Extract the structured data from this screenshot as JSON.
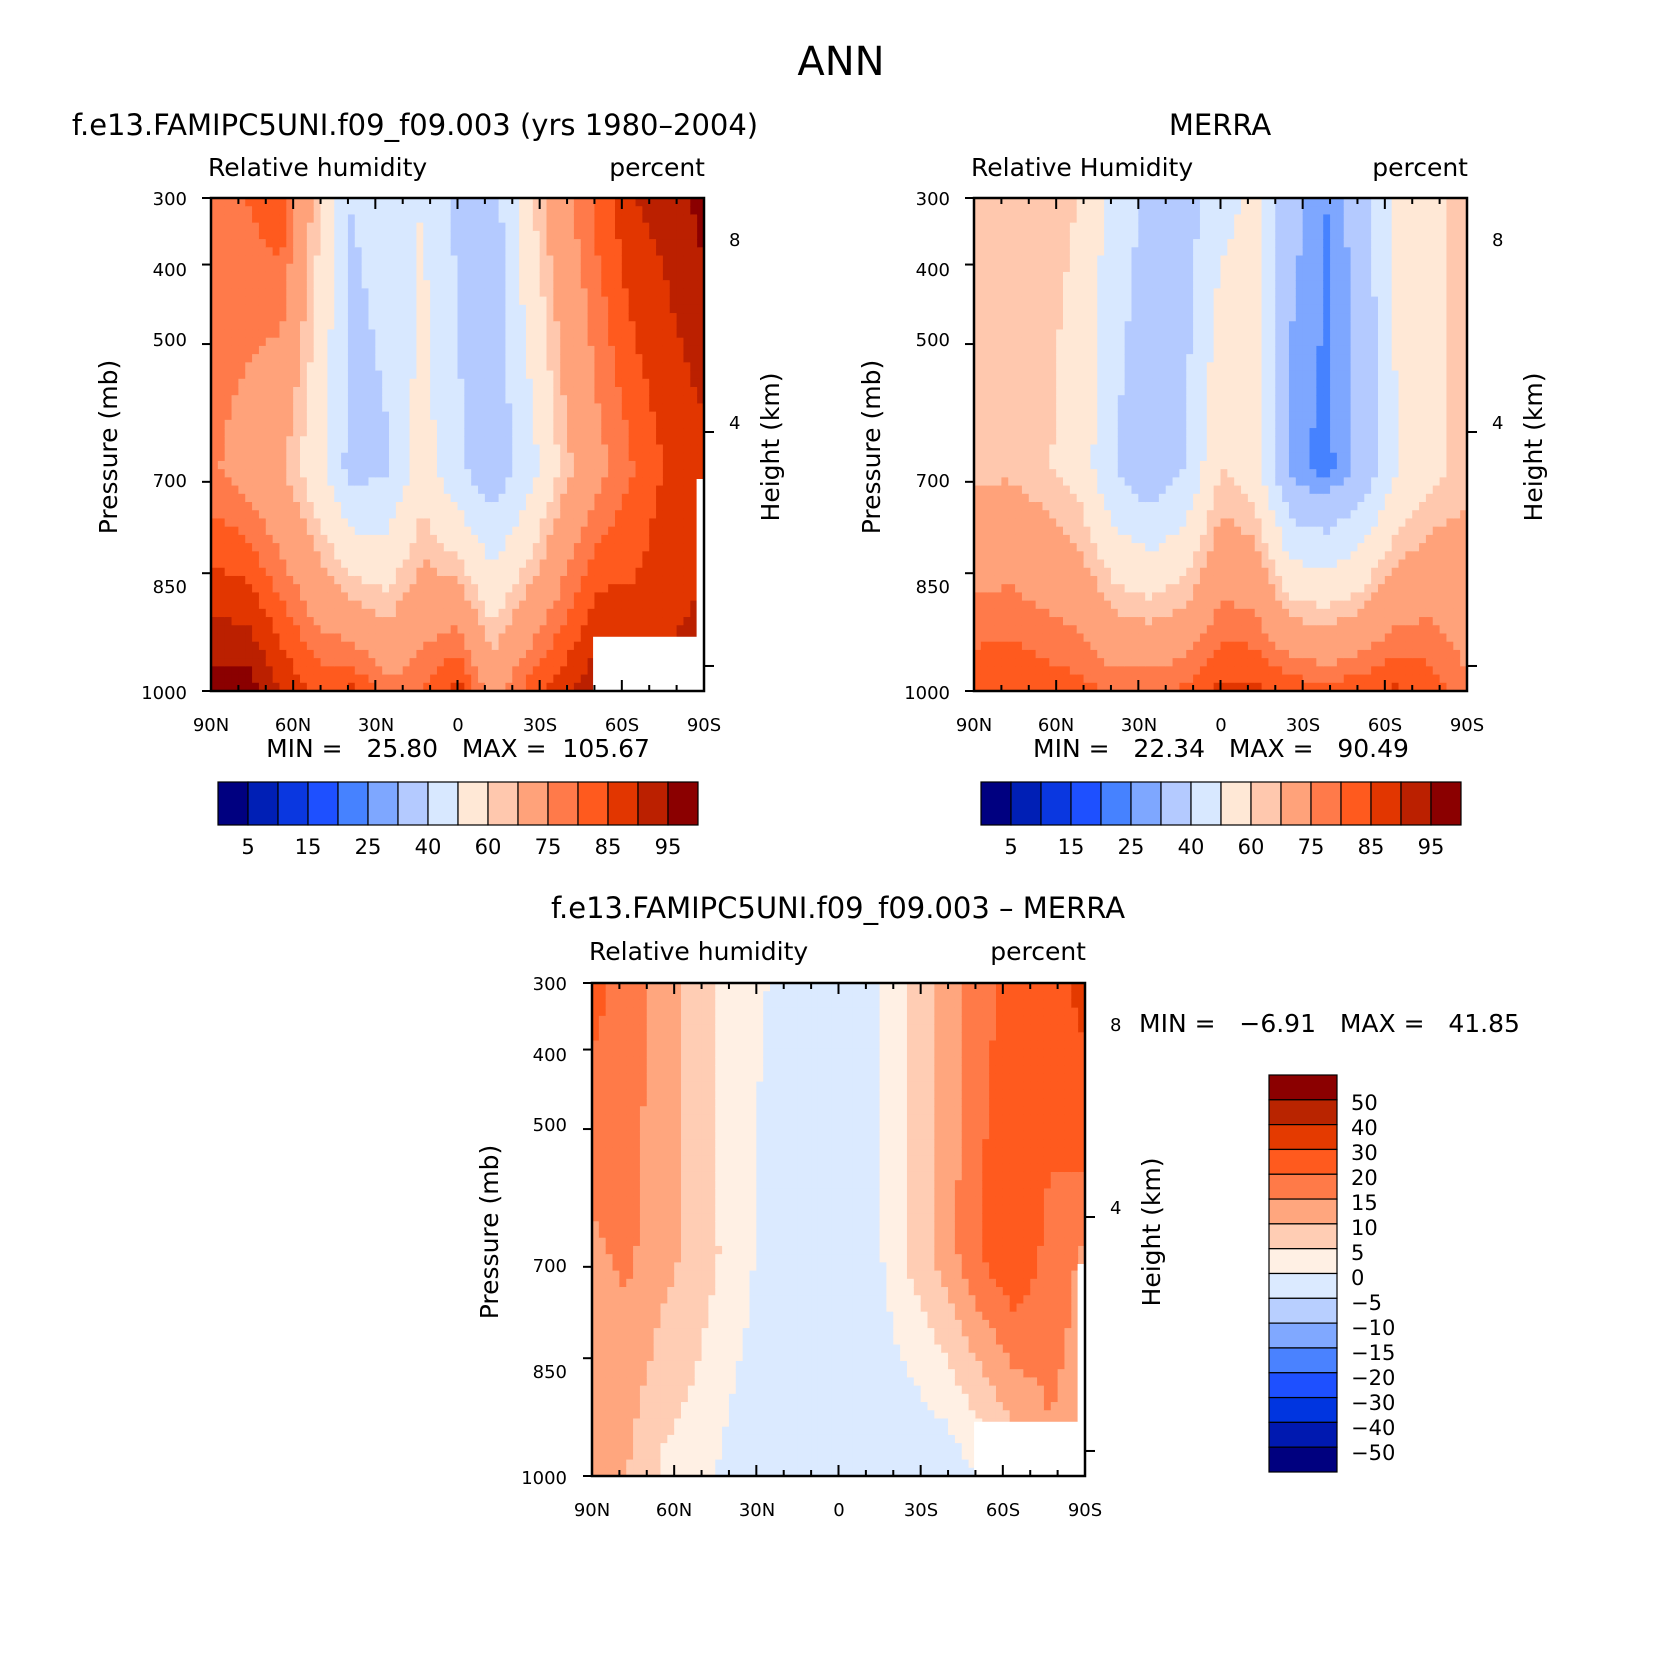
{
  "figure_title": "ANN",
  "colors": {
    "absolute_colormap": [
      "#000080",
      "#001fb5",
      "#0a37e0",
      "#1e50ff",
      "#4682ff",
      "#7ea7ff",
      "#b4caff",
      "#d8e8ff",
      "#ffe8d6",
      "#ffc8ae",
      "#ffa27a",
      "#ff7a4a",
      "#ff5a1e",
      "#e23600",
      "#bb2000",
      "#8b0000"
    ],
    "difference_colormap": [
      "#00007f",
      "#0019b0",
      "#0035e0",
      "#1e50ff",
      "#4a82ff",
      "#80a8ff",
      "#b8cfff",
      "#dbeaff",
      "#fff0e4",
      "#ffcdb4",
      "#ffa67e",
      "#ff7a48",
      "#ff5a1e",
      "#e43a00",
      "#b92400",
      "#8b0000"
    ]
  },
  "chart_data": [
    {
      "type": "heatmap",
      "title": "f.e13.FAMIPC5UNI.f09_f09.003 (yrs 1980–2004)",
      "left_label": "Relative humidity",
      "right_label": "percent",
      "xlabel": "",
      "ylabel": "Pressure (mb)",
      "y2label": "Height (km)",
      "x_ticks": [
        "90N",
        "60N",
        "30N",
        "0",
        "30S",
        "60S",
        "90S"
      ],
      "y_ticks": [
        "300",
        "400",
        "500",
        "700",
        "850",
        "1000"
      ],
      "y2_ticks": [
        "8",
        "4"
      ],
      "y_scale": "log",
      "y_range": [
        1000,
        300
      ],
      "min_text": "MIN =   25.80   MAX =  105.67",
      "colorbar_labels": [
        "5",
        "15",
        "25",
        "40",
        "60",
        "75",
        "85",
        "95"
      ],
      "colorbar_levels": [
        5,
        10,
        15,
        20,
        25,
        30,
        40,
        50,
        60,
        65,
        75,
        80,
        85,
        90,
        95
      ],
      "fields": {
        "surface": [
          97,
          98,
          90,
          84,
          86,
          77,
          80,
          88,
          72,
          82,
          88,
          95,
          90,
          91,
          92
        ],
        "upper": [
          78,
          80,
          84,
          62,
          40,
          44,
          50,
          38,
          34,
          58,
          73,
          82,
          90,
          92,
          97
        ],
        "mid": [
          76,
          72,
          66,
          54,
          36,
          39,
          55,
          42,
          33,
          45,
          62,
          73,
          80,
          86,
          88
        ]
      }
    },
    {
      "type": "heatmap",
      "title": "MERRA",
      "left_label": "Relative Humidity",
      "right_label": "percent",
      "xlabel": "",
      "ylabel": "Pressure (mb)",
      "y2label": "Height (km)",
      "x_ticks": [
        "90N",
        "60N",
        "30N",
        "0",
        "30S",
        "60S",
        "90S"
      ],
      "y_ticks": [
        "300",
        "400",
        "500",
        "700",
        "850",
        "1000"
      ],
      "y2_ticks": [
        "8",
        "4"
      ],
      "y_scale": "log",
      "y_range": [
        1000,
        300
      ],
      "min_text": "MIN =   22.34   MAX =   90.49",
      "colorbar_labels": [
        "5",
        "15",
        "25",
        "40",
        "60",
        "75",
        "85",
        "95"
      ],
      "colorbar_levels": [
        5,
        10,
        15,
        20,
        25,
        30,
        40,
        50,
        60,
        65,
        75,
        80,
        85,
        90,
        95
      ],
      "fields": {
        "surface": [
          84,
          85,
          83,
          82,
          79,
          80,
          81,
          86,
          86,
          84,
          82,
          84,
          86,
          83,
          76
        ],
        "upper": [
          60,
          61,
          62,
          60,
          45,
          38,
          35,
          47,
          52,
          33,
          25,
          34,
          52,
          59,
          62
        ],
        "mid": [
          63,
          64,
          61,
          56,
          40,
          32,
          40,
          60,
          55,
          27,
          23,
          32,
          50,
          58,
          63
        ]
      }
    },
    {
      "type": "heatmap",
      "title": "f.e13.FAMIPC5UNI.f09_f09.003 – MERRA",
      "left_label": "Relative humidity",
      "right_label": "percent",
      "xlabel": "",
      "ylabel": "Pressure (mb)",
      "y2label": "Height (km)",
      "x_ticks": [
        "90N",
        "60N",
        "30N",
        "0",
        "30S",
        "60S",
        "90S"
      ],
      "y_ticks": [
        "300",
        "400",
        "500",
        "700",
        "850",
        "1000"
      ],
      "y2_ticks": [
        "8",
        "4"
      ],
      "y_scale": "log",
      "y_range": [
        1000,
        300
      ],
      "min_text": "MIN =   −6.91   MAX =   41.85",
      "colorbar_labels": [
        "50",
        "40",
        "30",
        "20",
        "15",
        "10",
        "5",
        "0",
        "−5",
        "−10",
        "−15",
        "−20",
        "−30",
        "−40",
        "−50"
      ],
      "colorbar_levels": [
        -50,
        -40,
        -30,
        -20,
        -15,
        -10,
        -5,
        0,
        5,
        10,
        15,
        20,
        30,
        40,
        50
      ],
      "fields": {
        "surface": [
          12,
          10,
          4,
          2,
          -2,
          -3,
          -4,
          -3,
          -4,
          -5,
          -4,
          0,
          6,
          14,
          12
        ],
        "upper": [
          22,
          18,
          13,
          8,
          2,
          0,
          -3,
          -4,
          -2,
          6,
          12,
          18,
          22,
          25,
          34
        ],
        "mid": [
          14,
          16,
          12,
          8,
          3,
          -2,
          -3,
          -4,
          -2,
          6,
          12,
          20,
          25,
          18,
          14
        ]
      }
    }
  ]
}
